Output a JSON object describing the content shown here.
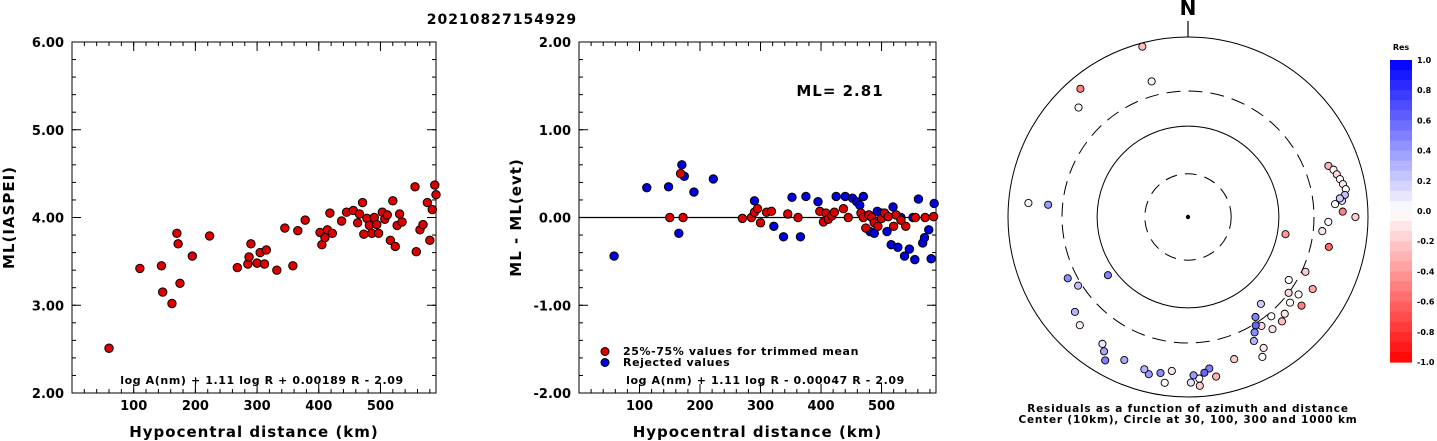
{
  "title": "20210827154929",
  "colors": {
    "trimmed": "#dd0000",
    "rejected": "#0000dd"
  },
  "charts": [
    {
      "type": "scatter",
      "ylabel": "ML(IASPEI)",
      "xlabel": "Hypocentral distance (km)",
      "xlim": [
        0,
        590
      ],
      "ylim": [
        2.0,
        6.0
      ],
      "xticks": [
        100,
        200,
        300,
        400,
        500
      ],
      "yticks": [
        "2.00",
        "3.00",
        "4.00",
        "5.00",
        "6.00"
      ],
      "formula": "log A(nm) + 1.11 log R + 0.00189 R - 2.09",
      "points": [
        [
          60,
          2.51
        ],
        [
          110,
          3.42
        ],
        [
          145,
          3.45
        ],
        [
          147,
          3.15
        ],
        [
          162,
          3.02
        ],
        [
          170,
          3.82
        ],
        [
          172,
          3.7
        ],
        [
          175,
          3.25
        ],
        [
          195,
          3.56
        ],
        [
          223,
          3.79
        ],
        [
          268,
          3.43
        ],
        [
          285,
          3.47
        ],
        [
          287,
          3.55
        ],
        [
          290,
          3.7
        ],
        [
          300,
          3.48
        ],
        [
          305,
          3.6
        ],
        [
          312,
          3.47
        ],
        [
          315,
          3.63
        ],
        [
          332,
          3.4
        ],
        [
          345,
          3.88
        ],
        [
          358,
          3.45
        ],
        [
          366,
          3.85
        ],
        [
          378,
          3.97
        ],
        [
          402,
          3.83
        ],
        [
          405,
          3.69
        ],
        [
          410,
          3.77
        ],
        [
          414,
          3.86
        ],
        [
          418,
          4.05
        ],
        [
          422,
          3.82
        ],
        [
          437,
          3.96
        ],
        [
          445,
          4.06
        ],
        [
          456,
          4.08
        ],
        [
          463,
          3.94
        ],
        [
          466,
          4.04
        ],
        [
          471,
          4.17
        ],
        [
          473,
          3.81
        ],
        [
          478,
          3.99
        ],
        [
          482,
          3.91
        ],
        [
          486,
          3.82
        ],
        [
          490,
          4.0
        ],
        [
          494,
          3.92
        ],
        [
          497,
          3.82
        ],
        [
          503,
          4.06
        ],
        [
          507,
          3.98
        ],
        [
          511,
          4.03
        ],
        [
          516,
          3.74
        ],
        [
          520,
          4.19
        ],
        [
          524,
          3.67
        ],
        [
          527,
          3.91
        ],
        [
          531,
          4.04
        ],
        [
          535,
          3.95
        ],
        [
          556,
          4.35
        ],
        [
          558,
          3.61
        ],
        [
          564,
          3.86
        ],
        [
          569,
          3.92
        ],
        [
          576,
          4.17
        ],
        [
          580,
          3.74
        ],
        [
          584,
          4.09
        ],
        [
          588,
          4.37
        ],
        [
          590,
          4.26
        ]
      ]
    },
    {
      "type": "scatter",
      "ylabel": "ML - ML(evt)",
      "xlabel": "Hypocentral distance (km)",
      "xlim": [
        0,
        590
      ],
      "ylim": [
        -2.0,
        2.0
      ],
      "xticks": [
        100,
        200,
        300,
        400,
        500
      ],
      "yticks": [
        "-2.00",
        "-1.00",
        "0.00",
        "1.00",
        "2.00"
      ],
      "ml_label": "ML= 2.81",
      "formula": "log A(nm) + 1.11 log R - 0.00047 R - 2.09",
      "legend": [
        {
          "label": "25%-75% values for trimmed mean",
          "color": "#dd0000"
        },
        {
          "label": "Rejected values",
          "color": "#0000dd"
        }
      ],
      "trimmed": [
        [
          150,
          0.0
        ],
        [
          172,
          0.0
        ],
        [
          168,
          0.5
        ],
        [
          270,
          -0.01
        ],
        [
          285,
          0.0
        ],
        [
          290,
          0.06
        ],
        [
          295,
          0.1
        ],
        [
          300,
          -0.06
        ],
        [
          310,
          0.06
        ],
        [
          318,
          0.07
        ],
        [
          345,
          0.04
        ],
        [
          362,
          0.0
        ],
        [
          398,
          0.07
        ],
        [
          404,
          -0.05
        ],
        [
          408,
          0.05
        ],
        [
          412,
          -0.02
        ],
        [
          418,
          0.02
        ],
        [
          422,
          0.06
        ],
        [
          437,
          0.1
        ],
        [
          445,
          0.0
        ],
        [
          466,
          0.05
        ],
        [
          470,
          0.0
        ],
        [
          474,
          -0.12
        ],
        [
          479,
          0.03
        ],
        [
          484,
          0.0
        ],
        [
          488,
          -0.06
        ],
        [
          494,
          -0.1
        ],
        [
          500,
          -0.01
        ],
        [
          505,
          0.05
        ],
        [
          511,
          0.01
        ],
        [
          520,
          -0.1
        ],
        [
          524,
          0.03
        ],
        [
          532,
          -0.03
        ],
        [
          540,
          -0.1
        ],
        [
          556,
          0.0
        ],
        [
          572,
          0.0
        ],
        [
          586,
          0.01
        ]
      ],
      "rejected": [
        [
          58,
          -0.44
        ],
        [
          112,
          0.34
        ],
        [
          148,
          0.35
        ],
        [
          165,
          -0.18
        ],
        [
          170,
          0.6
        ],
        [
          174,
          0.47
        ],
        [
          190,
          0.29
        ],
        [
          222,
          0.44
        ],
        [
          290,
          0.19
        ],
        [
          322,
          -0.1
        ],
        [
          338,
          -0.22
        ],
        [
          352,
          0.23
        ],
        [
          366,
          -0.22
        ],
        [
          375,
          0.24
        ],
        [
          395,
          0.18
        ],
        [
          425,
          0.24
        ],
        [
          440,
          0.24
        ],
        [
          452,
          0.22
        ],
        [
          459,
          0.18
        ],
        [
          464,
          0.14
        ],
        [
          470,
          0.24
        ],
        [
          481,
          -0.16
        ],
        [
          488,
          -0.18
        ],
        [
          493,
          0.07
        ],
        [
          500,
          0.05
        ],
        [
          509,
          -0.16
        ],
        [
          516,
          -0.31
        ],
        [
          519,
          0.12
        ],
        [
          527,
          -0.34
        ],
        [
          532,
          0.0
        ],
        [
          538,
          -0.44
        ],
        [
          546,
          -0.36
        ],
        [
          552,
          0.0
        ],
        [
          555,
          -0.48
        ],
        [
          561,
          0.21
        ],
        [
          568,
          -0.29
        ],
        [
          571,
          -0.23
        ],
        [
          578,
          -0.14
        ],
        [
          582,
          -0.47
        ],
        [
          587,
          0.16
        ]
      ]
    }
  ],
  "polar": {
    "north_label": "N",
    "caption_lines": [
      "Residuals as a function of azimuth and distance",
      "Center (10km), Circle at 30, 100, 300 and 1000 km"
    ],
    "colorbar_title": "Res",
    "colorbar_ticks": [
      "1.0",
      "0.8",
      "0.6",
      "0.4",
      "0.2",
      "0.0",
      "-0.2",
      "-0.4",
      "-0.6",
      "-0.8",
      "-1.0"
    ],
    "stations": [
      [
        345,
        0.98,
        -0.25
      ],
      [
        320,
        0.93,
        -0.5
      ],
      [
        315,
        0.86,
        -0.02
      ],
      [
        345,
        0.78,
        -0.05
      ],
      [
        275,
        0.89,
        -0.02
      ],
      [
        275,
        0.78,
        0.4
      ],
      [
        70,
        0.83,
        -0.3
      ],
      [
        72,
        0.85,
        0.0
      ],
      [
        74,
        0.86,
        -0.15
      ],
      [
        76,
        0.87,
        0.0
      ],
      [
        78,
        0.88,
        -0.1
      ],
      [
        80,
        0.89,
        0.0
      ],
      [
        82,
        0.88,
        0.25
      ],
      [
        84,
        0.86,
        0.1
      ],
      [
        83,
        0.85,
        0.2
      ],
      [
        85,
        0.82,
        0.0
      ],
      [
        88,
        0.86,
        -0.5
      ],
      [
        90,
        0.93,
        -0.2
      ],
      [
        92,
        0.78,
        -0.02
      ],
      [
        96,
        0.75,
        -0.1
      ],
      [
        102,
        0.8,
        -0.6
      ],
      [
        100,
        0.55,
        -0.4
      ],
      [
        115,
        0.72,
        -0.2
      ],
      [
        120,
        0.8,
        -0.35
      ],
      [
        122,
        0.66,
        0.0
      ],
      [
        125,
        0.75,
        0.0
      ],
      [
        127,
        0.7,
        -0.15
      ],
      [
        128,
        0.8,
        -0.5
      ],
      [
        130,
        0.74,
        0.0
      ],
      [
        135,
        0.76,
        -0.1
      ],
      [
        138,
        0.78,
        -0.25
      ],
      [
        140,
        0.72,
        0.0
      ],
      [
        143,
        0.78,
        -0.1
      ],
      [
        146,
        0.73,
        -0.15
      ],
      [
        140,
        0.63,
        0.2
      ],
      [
        146,
        0.67,
        0.5
      ],
      [
        148,
        0.71,
        0.6
      ],
      [
        150,
        0.74,
        0.45
      ],
      [
        152,
        0.78,
        0.3
      ],
      [
        150,
        0.84,
        -0.1
      ],
      [
        152,
        0.88,
        0.0
      ],
      [
        162,
        0.83,
        -0.2
      ],
      [
        170,
        0.9,
        -0.3
      ],
      [
        172,
        0.85,
        0.5
      ],
      [
        174,
        0.87,
        0.6
      ],
      [
        176,
        0.9,
        0.0
      ],
      [
        178,
        0.88,
        0.4
      ],
      [
        176,
        0.94,
        -0.2
      ],
      [
        179,
        0.92,
        0.1
      ],
      [
        186,
        0.86,
        -0.1
      ],
      [
        188,
        0.93,
        0.0
      ],
      [
        190,
        0.88,
        0.45
      ],
      [
        194,
        0.9,
        0.4
      ],
      [
        196,
        0.88,
        0.3
      ],
      [
        204,
        0.87,
        0.35
      ],
      [
        210,
        0.92,
        0.5
      ],
      [
        212,
        0.88,
        0.35
      ],
      [
        214,
        0.85,
        0.1
      ],
      [
        225,
        0.85,
        -0.05
      ],
      [
        230,
        0.82,
        0.3
      ],
      [
        234,
        0.55,
        0.5
      ],
      [
        238,
        0.72,
        0.25
      ],
      [
        243,
        0.75,
        0.45
      ]
    ]
  }
}
